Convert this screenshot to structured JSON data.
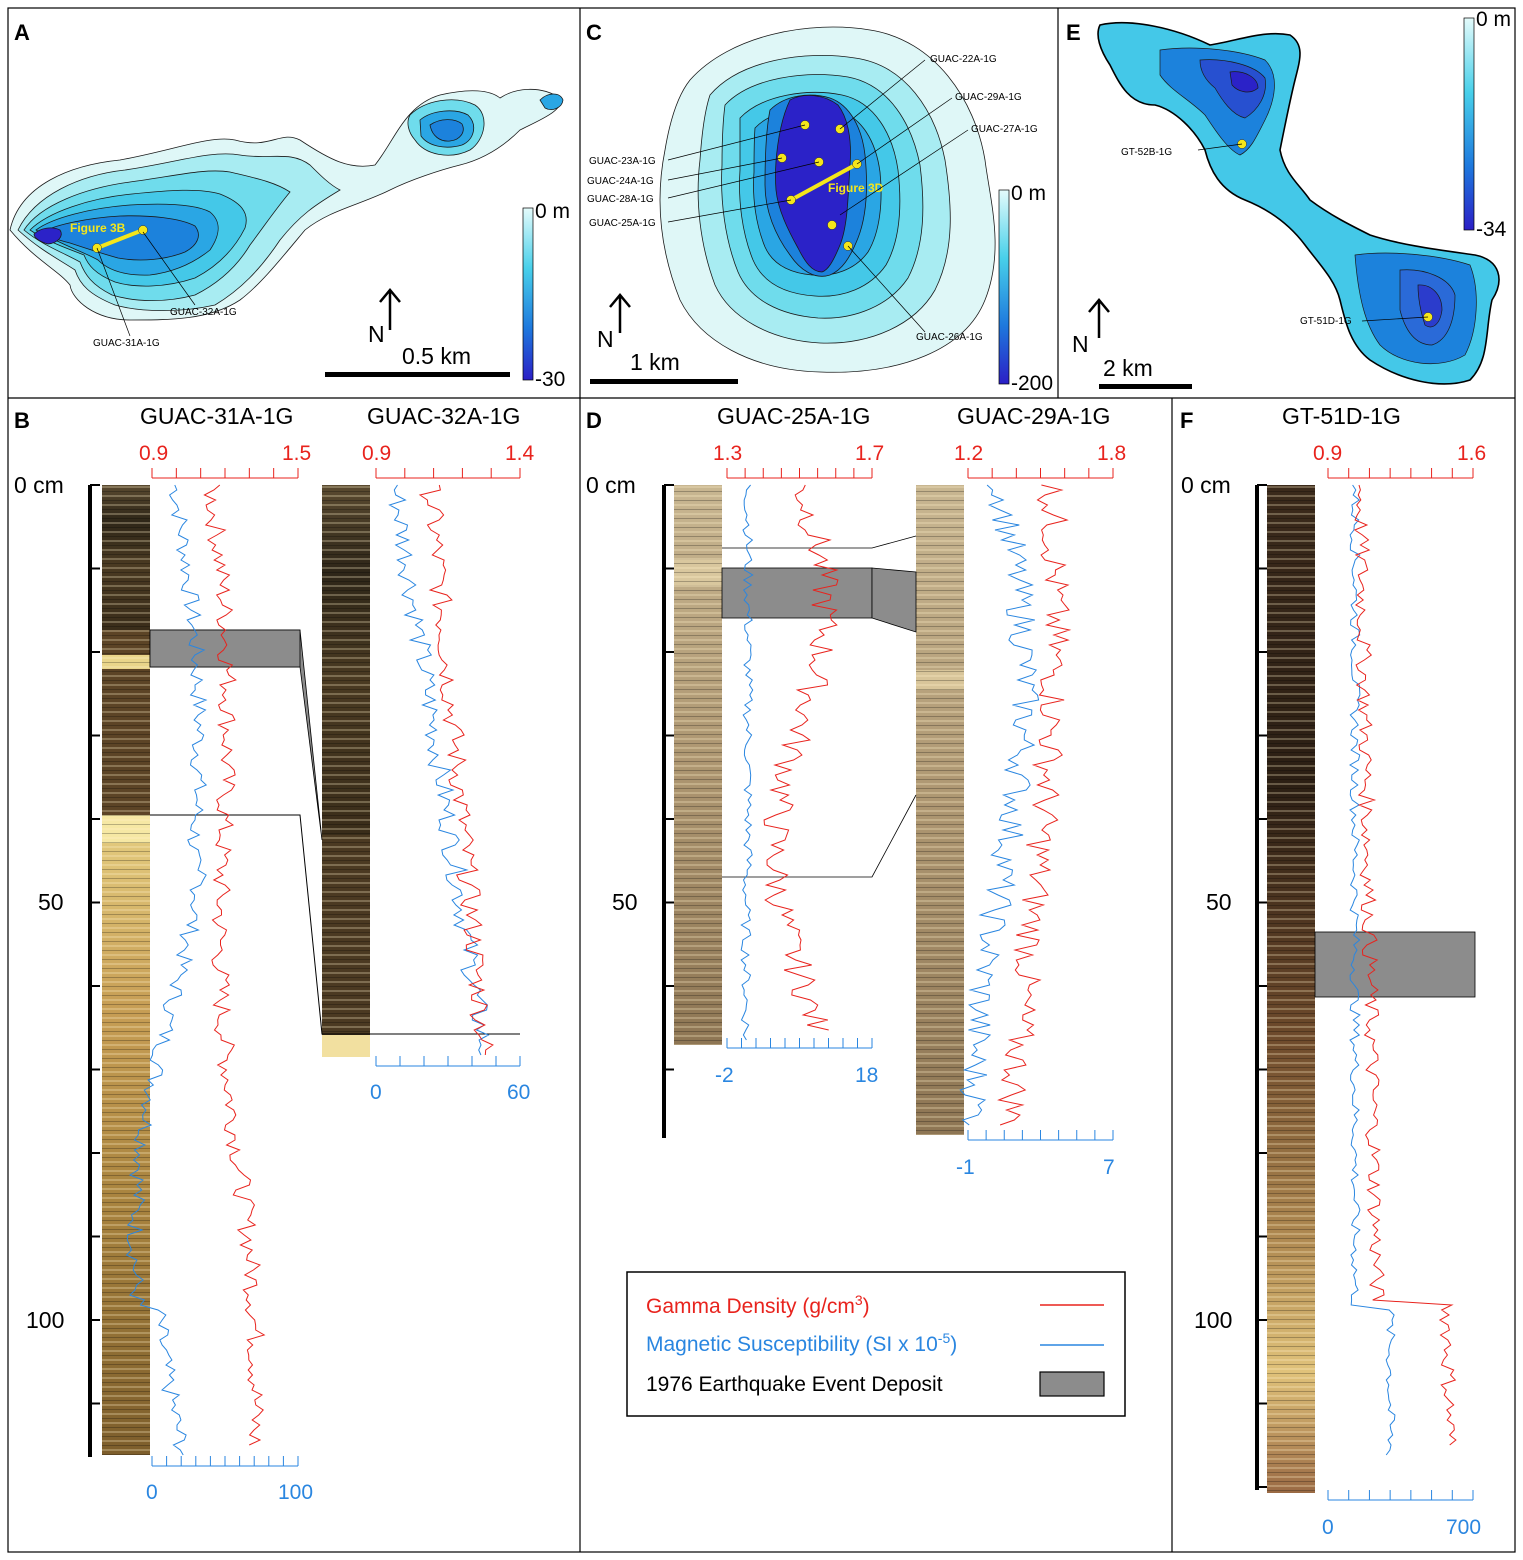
{
  "panels": {
    "A": {
      "letter": "A",
      "cores": [
        "GUAC-31A-1G",
        "GUAC-32A-1G"
      ],
      "transect": "Figure 3B",
      "scale": "0.5 km",
      "north": "N",
      "depth_top": "0 m",
      "depth_bottom": "-30"
    },
    "C": {
      "letter": "C",
      "cores": [
        "GUAC-22A-1G",
        "GUAC-29A-1G",
        "GUAC-27A-1G",
        "GUAC-23A-1G",
        "GUAC-24A-1G",
        "GUAC-28A-1G",
        "GUAC-25A-1G",
        "GUAC-26A-1G"
      ],
      "transect": "Figure 3D",
      "scale": "1 km",
      "north": "N",
      "depth_top": "0 m",
      "depth_bottom": "-200"
    },
    "E": {
      "letter": "E",
      "cores": [
        "GT-52B-1G",
        "GT-51D-1G"
      ],
      "scale": "2 km",
      "north": "N",
      "depth_top": "0 m",
      "depth_bottom": "-34"
    },
    "B": {
      "letter": "B",
      "cores": [
        {
          "title": "GUAC-31A-1G",
          "density_min": "0.9",
          "density_max": "1.5",
          "ms_min": "0",
          "ms_max": "100"
        },
        {
          "title": "GUAC-32A-1G",
          "density_min": "0.9",
          "density_max": "1.4",
          "ms_min": "0",
          "ms_max": "60"
        }
      ]
    },
    "D": {
      "letter": "D",
      "cores": [
        {
          "title": "GUAC-25A-1G",
          "density_min": "1.3",
          "density_max": "1.7",
          "ms_min": "-2",
          "ms_max": "18"
        },
        {
          "title": "GUAC-29A-1G",
          "density_min": "1.2",
          "density_max": "1.8",
          "ms_min": "-1",
          "ms_max": "7"
        }
      ]
    },
    "F": {
      "letter": "F",
      "cores": [
        {
          "title": "GT-51D-1G",
          "density_min": "0.9",
          "density_max": "1.6",
          "ms_min": "0",
          "ms_max": "700"
        }
      ]
    }
  },
  "depth_axis": {
    "label_top": "0 cm",
    "label_mid": "50",
    "label_low": "100"
  },
  "legend": {
    "gamma_density": "Gamma Density (g/cm",
    "gamma_unit_sup": "3",
    "gamma_close": ")",
    "mag_sus": "Magnetic Susceptibility  (SI x 10",
    "mag_sup": "-5",
    "mag_close": ")",
    "event": "1976 Earthquake Event Deposit"
  },
  "colors": {
    "density_line": "#e8231d",
    "ms_line": "#2a86e0",
    "event_fill": "#8c8c8c",
    "lake_light": "#dff7f7",
    "lake_deep": "#2b22c8"
  }
}
